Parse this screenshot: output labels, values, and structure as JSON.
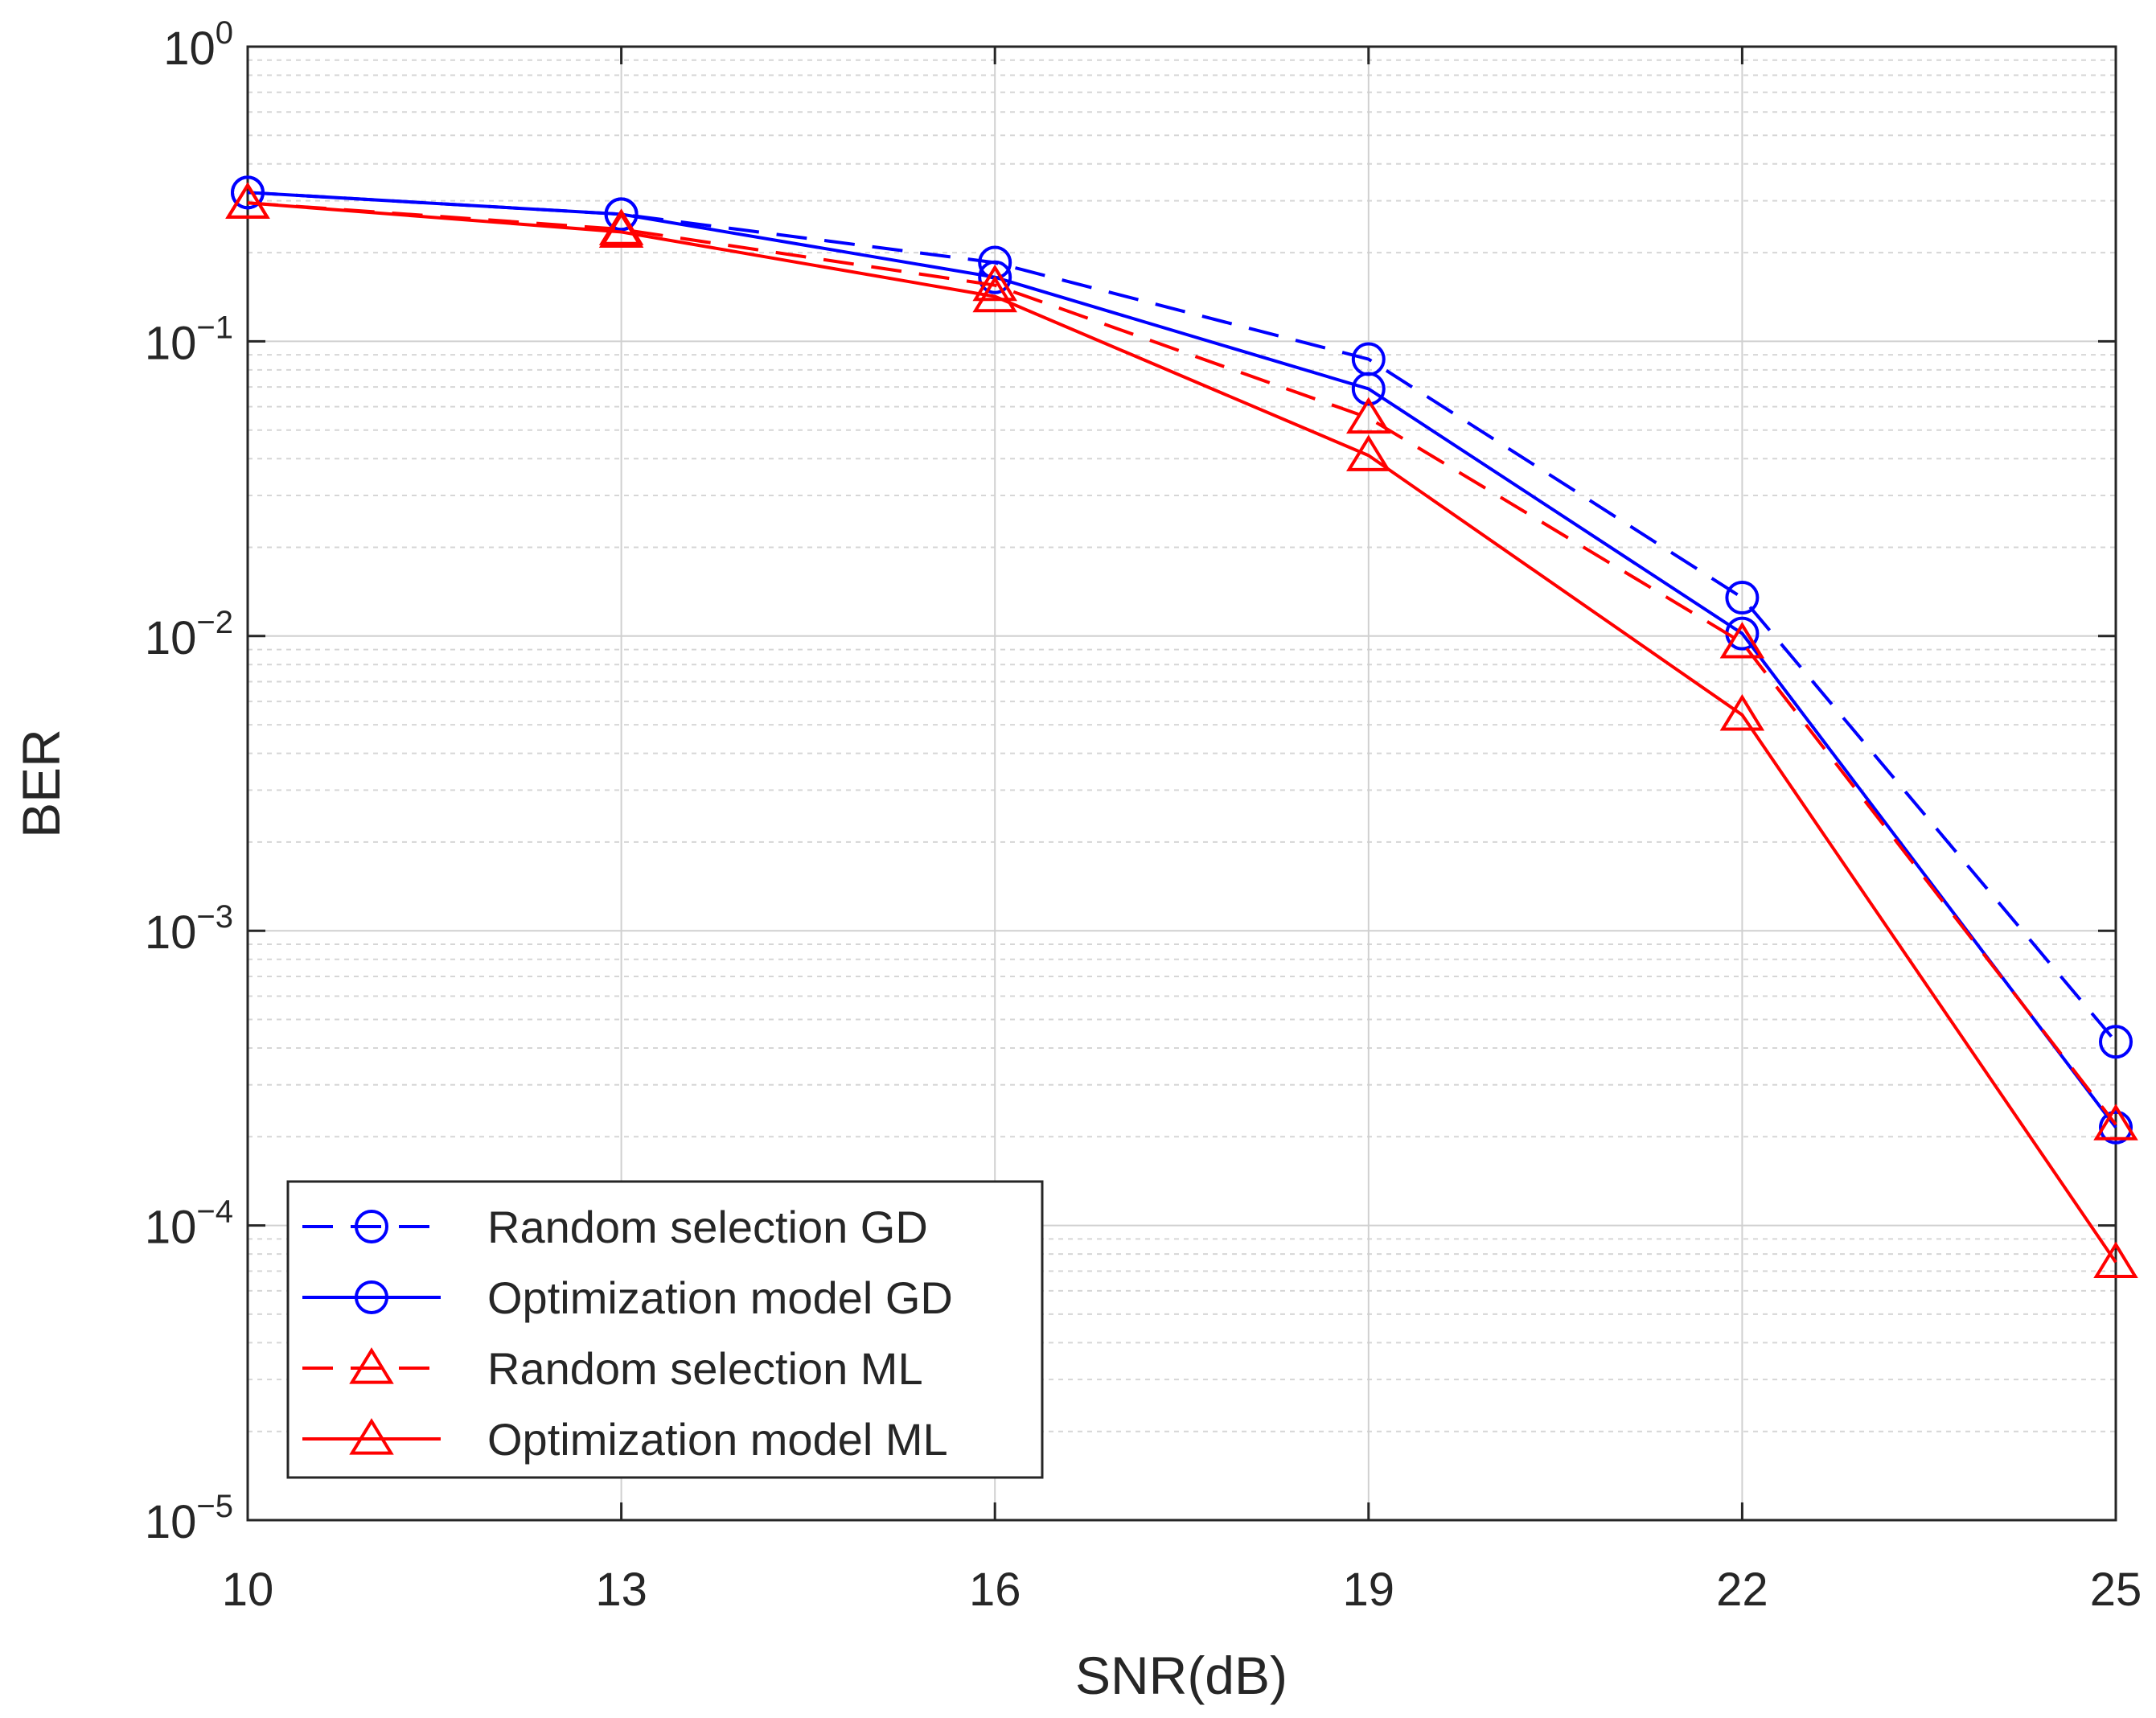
{
  "chart_data": {
    "type": "line",
    "title": "",
    "xlabel": "SNR(dB)",
    "ylabel": "BER",
    "xscale": "linear",
    "yscale": "log",
    "xlim": [
      10,
      25
    ],
    "ylim": [
      1e-05,
      1
    ],
    "x": [
      10,
      13,
      16,
      19,
      22,
      25
    ],
    "xticks": [
      "10",
      "13",
      "16",
      "19",
      "22",
      "25"
    ],
    "yticks": [
      {
        "base": "10",
        "exp": "0"
      },
      {
        "base": "10",
        "exp": "−1"
      },
      {
        "base": "10",
        "exp": "−2"
      },
      {
        "base": "10",
        "exp": "−3"
      },
      {
        "base": "10",
        "exp": "−4"
      },
      {
        "base": "10",
        "exp": "−5"
      }
    ],
    "ytick_values": [
      1,
      0.1,
      0.01,
      0.001,
      0.0001,
      1e-05
    ],
    "grid": true,
    "legend_position": "bottom-left",
    "series": [
      {
        "name": "Random selection GD",
        "color": "#0000ff",
        "line_style": "dashed",
        "marker": "circle",
        "values": [
          0.32,
          0.27,
          0.185,
          0.087,
          0.0135,
          0.00042
        ]
      },
      {
        "name": "Optimization model GD",
        "color": "#0000ff",
        "line_style": "solid",
        "marker": "circle",
        "values": [
          0.32,
          0.27,
          0.165,
          0.069,
          0.0102,
          0.000215
        ]
      },
      {
        "name": "Random selection ML",
        "color": "#ff0000",
        "line_style": "dashed",
        "marker": "triangle",
        "values": [
          0.295,
          0.24,
          0.155,
          0.055,
          0.0095,
          0.00022
        ]
      },
      {
        "name": "Optimization model ML",
        "color": "#ff0000",
        "line_style": "solid",
        "marker": "triangle",
        "values": [
          0.295,
          0.235,
          0.142,
          0.041,
          0.0054,
          7.5e-05
        ]
      }
    ]
  }
}
